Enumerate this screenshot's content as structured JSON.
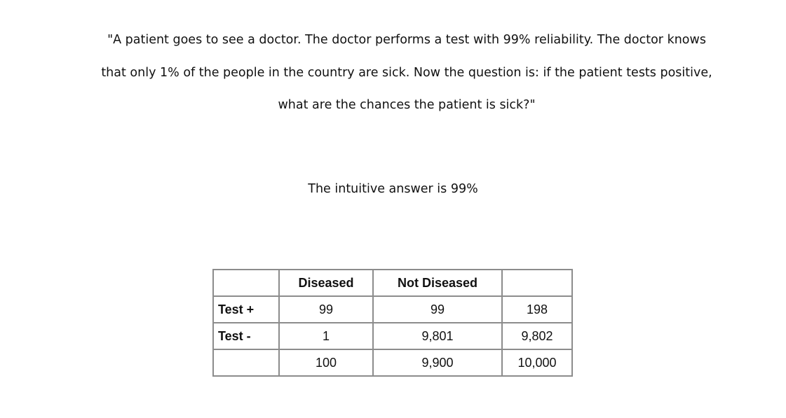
{
  "quote": {
    "lines": [
      "\"A patient goes to see a doctor. The doctor performs a test with 99% reliability. The doctor knows",
      "that only 1% of the people in the country are sick. Now the question is: if the patient tests positive,",
      "what are the chances the patient is sick?\""
    ]
  },
  "intuitive_answer": "The intuitive answer is 99%",
  "table": {
    "columns": [
      "",
      "Diseased",
      "Not Diseased",
      ""
    ],
    "rows": [
      [
        "Test +",
        "99",
        "99",
        "198"
      ],
      [
        "Test -",
        "1",
        "9,801",
        "9,802"
      ],
      [
        "",
        "100",
        "9,900",
        "10,000"
      ]
    ]
  }
}
